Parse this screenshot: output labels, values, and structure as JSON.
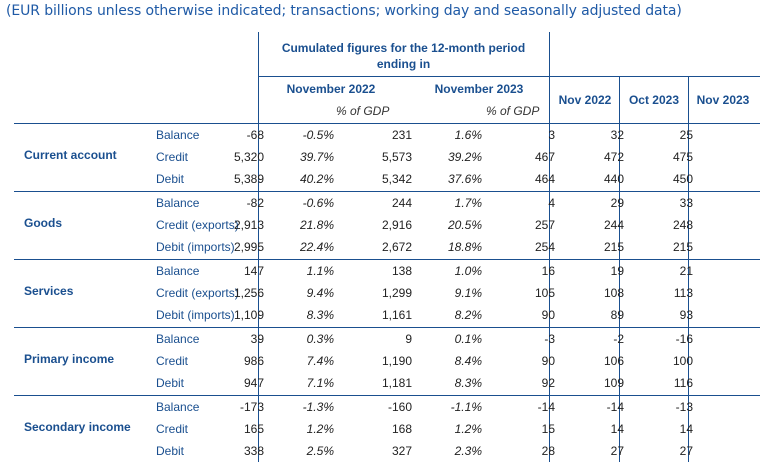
{
  "caption": "(EUR billions unless otherwise indicated; transactions; working day and seasonally adjusted data)",
  "header": {
    "cumulated": "Cumulated figures for the 12-month period ending in",
    "nov2022": "November 2022",
    "nov2023": "November 2023",
    "pct_gdp": "% of GDP",
    "monthly": [
      "Nov 2022",
      "Oct 2023",
      "Nov 2023"
    ]
  },
  "groups": [
    {
      "name": "Current account",
      "rows": [
        {
          "label": "Balance",
          "v22": "-68",
          "p22": "-0.5%",
          "v23": "231",
          "p23": "1.6%",
          "m1": "3",
          "m2": "32",
          "m3": "25"
        },
        {
          "label": "Credit",
          "v22": "5,320",
          "p22": "39.7%",
          "v23": "5,573",
          "p23": "39.2%",
          "m1": "467",
          "m2": "472",
          "m3": "475"
        },
        {
          "label": "Debit",
          "v22": "5,389",
          "p22": "40.2%",
          "v23": "5,342",
          "p23": "37.6%",
          "m1": "464",
          "m2": "440",
          "m3": "450"
        }
      ]
    },
    {
      "name": "Goods",
      "rows": [
        {
          "label": "Balance",
          "v22": "-82",
          "p22": "-0.6%",
          "v23": "244",
          "p23": "1.7%",
          "m1": "4",
          "m2": "29",
          "m3": "33"
        },
        {
          "label": "Credit (exports)",
          "v22": "2,913",
          "p22": "21.8%",
          "v23": "2,916",
          "p23": "20.5%",
          "m1": "257",
          "m2": "244",
          "m3": "248"
        },
        {
          "label": "Debit (imports)",
          "v22": "2,995",
          "p22": "22.4%",
          "v23": "2,672",
          "p23": "18.8%",
          "m1": "254",
          "m2": "215",
          "m3": "215"
        }
      ]
    },
    {
      "name": "Services",
      "rows": [
        {
          "label": "Balance",
          "v22": "147",
          "p22": "1.1%",
          "v23": "138",
          "p23": "1.0%",
          "m1": "16",
          "m2": "19",
          "m3": "21"
        },
        {
          "label": "Credit (exports)",
          "v22": "1,256",
          "p22": "9.4%",
          "v23": "1,299",
          "p23": "9.1%",
          "m1": "105",
          "m2": "108",
          "m3": "113"
        },
        {
          "label": "Debit (imports)",
          "v22": "1,109",
          "p22": "8.3%",
          "v23": "1,161",
          "p23": "8.2%",
          "m1": "90",
          "m2": "89",
          "m3": "93"
        }
      ]
    },
    {
      "name": "Primary income",
      "rows": [
        {
          "label": "Balance",
          "v22": "39",
          "p22": "0.3%",
          "v23": "9",
          "p23": "0.1%",
          "m1": "-3",
          "m2": "-2",
          "m3": "-16"
        },
        {
          "label": "Credit",
          "v22": "986",
          "p22": "7.4%",
          "v23": "1,190",
          "p23": "8.4%",
          "m1": "90",
          "m2": "106",
          "m3": "100"
        },
        {
          "label": "Debit",
          "v22": "947",
          "p22": "7.1%",
          "v23": "1,181",
          "p23": "8.3%",
          "m1": "92",
          "m2": "109",
          "m3": "116"
        }
      ]
    },
    {
      "name": "Secondary income",
      "rows": [
        {
          "label": "Balance",
          "v22": "-173",
          "p22": "-1.3%",
          "v23": "-160",
          "p23": "-1.1%",
          "m1": "-14",
          "m2": "-14",
          "m3": "-13"
        },
        {
          "label": "Credit",
          "v22": "165",
          "p22": "1.2%",
          "v23": "168",
          "p23": "1.2%",
          "m1": "15",
          "m2": "14",
          "m3": "14"
        },
        {
          "label": "Debit",
          "v22": "338",
          "p22": "2.5%",
          "v23": "327",
          "p23": "2.3%",
          "m1": "28",
          "m2": "27",
          "m3": "27"
        }
      ]
    }
  ]
}
